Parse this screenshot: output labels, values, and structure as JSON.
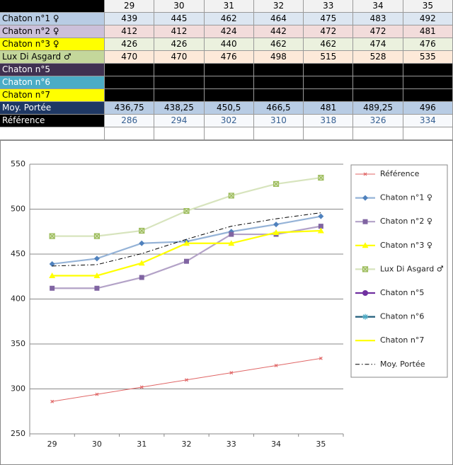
{
  "table": {
    "header": [
      29,
      30,
      31,
      32,
      33,
      34,
      35
    ],
    "rows": [
      {
        "label": "Chaton n°1 ♀",
        "cells": [
          439,
          445,
          462,
          464,
          475,
          483,
          492
        ]
      },
      {
        "label": "Chaton n°2 ♀",
        "cells": [
          412,
          412,
          424,
          442,
          472,
          472,
          481
        ]
      },
      {
        "label": "Chaton n°3 ♀",
        "cells": [
          426,
          426,
          440,
          462,
          462,
          474,
          476
        ]
      },
      {
        "label": "Lux Di Asgard ♂",
        "cells": [
          470,
          470,
          476,
          498,
          515,
          528,
          535
        ]
      },
      {
        "label": "Chaton n°5"
      },
      {
        "label": "Chaton n°6"
      },
      {
        "label": "Chaton n°7"
      },
      {
        "label": "Moy. Portée",
        "cells": [
          "436,75",
          "438,25",
          "450,5",
          "466,5",
          481,
          "489,25",
          496
        ]
      },
      {
        "label": "Référence",
        "cells": [
          286,
          294,
          302,
          310,
          318,
          326,
          334
        ]
      }
    ]
  },
  "chart_data": {
    "type": "line",
    "categories": [
      29,
      30,
      31,
      32,
      33,
      34,
      35
    ],
    "ylim": [
      250,
      550
    ],
    "yticks": [
      250,
      300,
      350,
      400,
      450,
      500,
      550
    ],
    "grid": true,
    "legend": "right",
    "series": [
      {
        "name": "Référence",
        "color": "#e06666",
        "marker": "x",
        "values": [
          286,
          294,
          302,
          310,
          318,
          326,
          334
        ]
      },
      {
        "name": "Chaton n°1 ♀",
        "color": "#95b3d7",
        "marker_color": "#4f81bd",
        "marker": "diamond",
        "values": [
          439,
          445,
          462,
          464,
          475,
          483,
          492
        ]
      },
      {
        "name": "Chaton n°2 ♀",
        "color": "#b3a2c7",
        "marker_color": "#8064a2",
        "marker": "square",
        "values": [
          412,
          412,
          424,
          442,
          472,
          472,
          481
        ]
      },
      {
        "name": "Chaton n°3 ♀",
        "color": "#ffff00",
        "marker_color": "#ffff00",
        "marker": "triangle",
        "values": [
          426,
          426,
          440,
          462,
          462,
          474,
          476
        ]
      },
      {
        "name": "Lux Di Asgard ♂",
        "color": "#d7e4bd",
        "marker_color": "#9bbb59",
        "marker": "square-x",
        "values": [
          470,
          470,
          476,
          498,
          515,
          528,
          535
        ]
      },
      {
        "name": "Chaton n°5",
        "color": "#7030a0",
        "marker_color": "#7030a0",
        "marker": "circle",
        "values": [
          null,
          null,
          null,
          null,
          null,
          null,
          null
        ]
      },
      {
        "name": "Chaton n°6",
        "color": "#1f5c7a",
        "marker_color": "#4bacc6",
        "marker": "star",
        "values": [
          null,
          null,
          null,
          null,
          null,
          null,
          null
        ]
      },
      {
        "name": "Chaton n°7",
        "color": "#ffff00",
        "marker": "none",
        "values": [
          null,
          null,
          null,
          null,
          null,
          null,
          null
        ]
      },
      {
        "name": "Moy. Portée",
        "color": "#000000",
        "marker": "none",
        "dash": "dashdot",
        "values": [
          436.75,
          438.25,
          450.5,
          466.5,
          481,
          489.25,
          496
        ]
      }
    ]
  }
}
